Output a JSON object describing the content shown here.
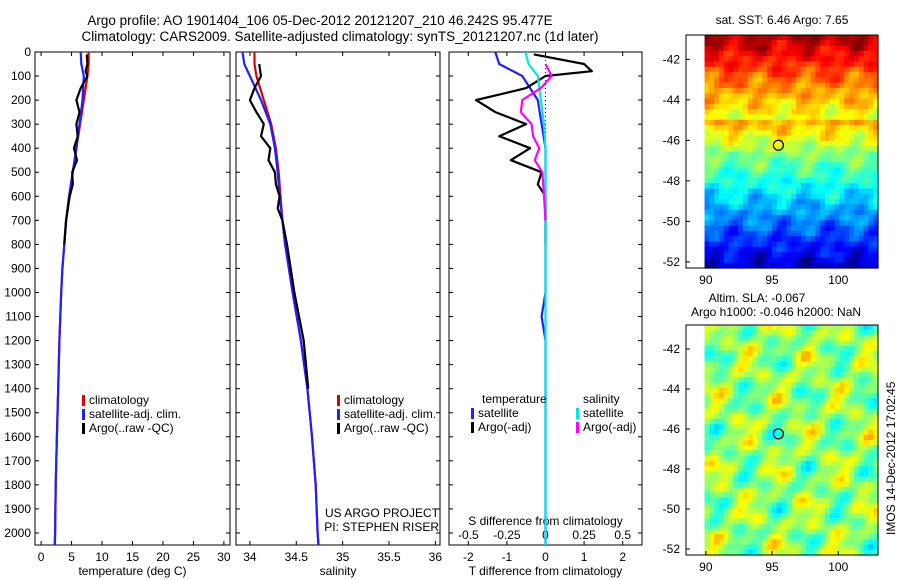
{
  "header": {
    "line1": "Argo profile: AO 1901404_106 05-Dec-2012 20121207_210 46.242S 95.477E",
    "line2": "Climatology: CARS2009. Satellite-adjusted climatology: synTS_20121207.nc (1d later)"
  },
  "footer_stamp": "IMOS 14-Dec-2012 17:02:45",
  "colors": {
    "climatology": "#e00000",
    "satellite": "#1f1fff",
    "argo": "#000000",
    "sat_sal": "#00e5e5",
    "argo_sal": "#ff00ff"
  },
  "chart_data": [
    {
      "type": "line",
      "id": "temperature",
      "xlabel": "temperature (deg C)",
      "xlim": [
        -1,
        31
      ],
      "ylim": [
        2050,
        0
      ],
      "xticks": [
        0,
        5,
        10,
        15,
        20,
        25,
        30
      ],
      "yticks": [
        0,
        100,
        200,
        300,
        400,
        500,
        600,
        700,
        800,
        900,
        1000,
        1100,
        1200,
        1300,
        1400,
        1500,
        1600,
        1700,
        1800,
        1900,
        2000
      ],
      "legend": {
        "position": "lower-center",
        "entries": [
          "climatology",
          "satellite-adj. clim.",
          "Argo(..raw -QC)"
        ]
      },
      "series": [
        {
          "name": "climatology",
          "color": "#e00000",
          "depth": [
            0,
            50,
            100,
            200,
            300,
            400,
            500,
            600,
            700,
            800,
            900,
            1000,
            1200,
            1400,
            1600,
            1800,
            2000,
            2050
          ],
          "values": [
            7.8,
            7.8,
            7.6,
            7.0,
            6.4,
            5.8,
            5.2,
            4.6,
            4.1,
            3.8,
            3.5,
            3.3,
            3.0,
            2.8,
            2.6,
            2.4,
            2.3,
            2.25
          ]
        },
        {
          "name": "satellite-adj. clim.",
          "color": "#1f1fff",
          "depth": [
            0,
            50,
            100,
            200,
            300,
            400,
            500,
            600,
            700,
            800,
            900,
            1000,
            1200,
            1400,
            1600,
            1800,
            2000,
            2050
          ],
          "values": [
            6.5,
            6.6,
            7.0,
            6.8,
            6.3,
            5.8,
            5.2,
            4.6,
            4.1,
            3.8,
            3.5,
            3.3,
            3.0,
            2.8,
            2.6,
            2.4,
            2.3,
            2.25
          ]
        },
        {
          "name": "Argo(..raw -QC)",
          "color": "#000000",
          "depth": [
            10,
            50,
            80,
            100,
            150,
            200,
            250,
            300,
            350,
            400,
            450,
            500,
            550,
            600,
            700,
            800
          ],
          "values": [
            7.5,
            7.6,
            7.3,
            7.6,
            6.5,
            5.8,
            6.3,
            5.8,
            6.0,
            5.4,
            5.9,
            5.1,
            5.2,
            4.7,
            4.1,
            3.8
          ]
        }
      ]
    },
    {
      "type": "line",
      "id": "salinity",
      "xlabel": "salinity",
      "xlim": [
        33.85,
        36.05
      ],
      "ylim": [
        2050,
        0
      ],
      "xticks": [
        34,
        34.5,
        35,
        35.5,
        36
      ],
      "xticklabels": [
        "34",
        "34.5",
        "35",
        "35.5",
        "36"
      ],
      "legend": {
        "position": "lower-center",
        "entries": [
          "climatology",
          "satellite-adj. clim.",
          "Argo(..raw -QC)"
        ]
      },
      "annotations": [
        "US ARGO PROJECT",
        "PI: STEPHEN RISER"
      ],
      "series": [
        {
          "name": "climatology",
          "color": "#e00000",
          "depth": [
            0,
            50,
            100,
            200,
            300,
            400,
            500,
            600,
            700,
            800,
            900,
            1000,
            1200,
            1400,
            1600,
            1800,
            2000,
            2050
          ],
          "values": [
            34.05,
            34.05,
            34.07,
            34.15,
            34.23,
            34.28,
            34.31,
            34.33,
            34.35,
            34.38,
            34.42,
            34.46,
            34.55,
            34.62,
            34.67,
            34.71,
            34.73,
            34.74
          ]
        },
        {
          "name": "satellite-adj. clim.",
          "color": "#1f1fff",
          "depth": [
            0,
            50,
            100,
            200,
            300,
            400,
            500,
            600,
            700,
            800,
            900,
            1000,
            1200,
            1400,
            1600,
            1800,
            2000,
            2050
          ],
          "values": [
            33.92,
            33.94,
            34.0,
            34.12,
            34.22,
            34.27,
            34.3,
            34.32,
            34.35,
            34.38,
            34.42,
            34.46,
            34.55,
            34.62,
            34.67,
            34.71,
            34.73,
            34.74
          ]
        },
        {
          "name": "Argo(..raw -QC)",
          "color": "#000000",
          "depth": [
            50,
            100,
            150,
            200,
            250,
            300,
            350,
            400,
            450,
            500,
            550,
            600,
            650,
            700,
            800,
            900,
            1000,
            1200,
            1400
          ],
          "values": [
            34.1,
            34.12,
            34.05,
            34.0,
            34.07,
            34.15,
            34.12,
            34.22,
            34.2,
            34.27,
            34.28,
            34.32,
            34.3,
            34.35,
            34.4,
            34.44,
            34.48,
            34.58,
            34.63
          ]
        }
      ]
    },
    {
      "type": "line",
      "id": "differences",
      "xlabel": "T difference from climatology",
      "xlabel2": "S difference from climatology",
      "xlim": [
        -2.5,
        2.5
      ],
      "ylim": [
        2050,
        0
      ],
      "xticks": [
        -2,
        -1,
        0,
        1,
        2
      ],
      "xticks2": [
        -0.5,
        -0.25,
        0,
        0.25,
        0.5
      ],
      "xticklabels2": [
        "-0.5",
        "-0.25",
        "0",
        "0.25",
        "0.5"
      ],
      "legend": {
        "position": "lower-center",
        "titles": [
          "temperature",
          "salinity"
        ],
        "entries": [
          "satellite",
          "Argo(-adj)",
          "satellite",
          "Argo(-adj)"
        ]
      },
      "series": [
        {
          "name": "satellite",
          "group": "temperature",
          "color": "#1f1fff",
          "depth": [
            0,
            50,
            100,
            200,
            300,
            400,
            500,
            600,
            800,
            1000,
            1100,
            1200,
            1400,
            2050
          ],
          "values": [
            -1.3,
            -1.2,
            -0.6,
            -0.2,
            -0.1,
            0.0,
            0.0,
            0.0,
            0.0,
            0.0,
            -0.1,
            0.0,
            0.0,
            0.0
          ]
        },
        {
          "name": "Argo(-adj)",
          "group": "temperature",
          "color": "#000000",
          "depth": [
            10,
            50,
            80,
            100,
            150,
            200,
            250,
            300,
            350,
            400,
            450,
            500,
            550,
            600,
            700,
            800
          ],
          "values": [
            -0.3,
            1.0,
            1.2,
            0.0,
            -0.5,
            -1.8,
            -1.3,
            -0.5,
            -1.2,
            -0.4,
            -0.9,
            -0.1,
            -0.2,
            0.0,
            0.0,
            0.0
          ]
        },
        {
          "name": "satellite",
          "group": "salinity",
          "color": "#00e5e5",
          "depth": [
            0,
            50,
            100,
            200,
            300,
            400,
            500,
            600,
            800,
            1000,
            1400,
            2050
          ],
          "values": [
            -0.13,
            -0.11,
            -0.05,
            -0.03,
            -0.01,
            0.0,
            0.0,
            0.0,
            0.0,
            0.0,
            0.0,
            0.0
          ]
        },
        {
          "name": "Argo(-adj)",
          "group": "salinity",
          "color": "#ff00ff",
          "depth": [
            50,
            100,
            150,
            200,
            250,
            300,
            350,
            400,
            450,
            500,
            600,
            700
          ],
          "values": [
            0.0,
            0.04,
            -0.03,
            -0.15,
            -0.16,
            -0.09,
            -0.08,
            -0.04,
            -0.07,
            -0.02,
            -0.01,
            0.0
          ]
        }
      ]
    },
    {
      "type": "heatmap",
      "id": "sst_map",
      "title": "sat. SST: 6.46  Argo: 7.65",
      "xlim": [
        88.5,
        103
      ],
      "ylim": [
        -52.3,
        -40.8
      ],
      "xticks": [
        90,
        95,
        100
      ],
      "yticks": [
        -42,
        -44,
        -46,
        -48,
        -50,
        -52
      ],
      "marker": {
        "lon": 95.477,
        "lat": -46.242
      }
    },
    {
      "type": "heatmap",
      "id": "sla_map",
      "title": "Altim. SLA: -0.067",
      "subtitle": "Argo h1000: -0.046 h2000: NaN",
      "xlim": [
        88.5,
        103
      ],
      "ylim": [
        -52.3,
        -40.8
      ],
      "xticks": [
        90,
        95,
        100
      ],
      "yticks": [
        -42,
        -44,
        -46,
        -48,
        -50,
        -52
      ],
      "marker": {
        "lon": 95.477,
        "lat": -46.242
      }
    }
  ]
}
